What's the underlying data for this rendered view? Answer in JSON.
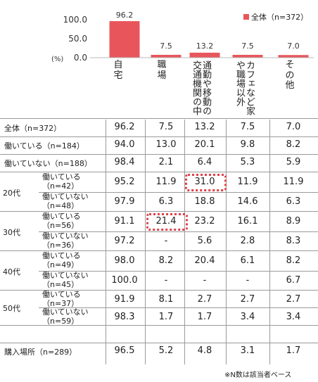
{
  "chart_data": {
    "type": "bar",
    "categories": [
      "自宅",
      "職場",
      "通勤や移動の交通機関の中",
      "カフェなど家や職場以外",
      "その他"
    ],
    "series": [
      {
        "name": "全体（n=372）",
        "values": [
          96.2,
          7.5,
          13.2,
          7.5,
          7.0
        ]
      }
    ],
    "value_labels": [
      "96.2",
      "7.5",
      "13.2",
      "7.5",
      "7.0"
    ],
    "y_ticks": [
      "100.0",
      "50.0",
      "0.0"
    ],
    "ylim": [
      0,
      100
    ],
    "y_unit": "(%)",
    "bar_color": "#e8565c",
    "legend_position": "top-right"
  },
  "table": {
    "rows": [
      {
        "label": "全体（n=372）",
        "values": [
          "96.2",
          "7.5",
          "13.2",
          "7.5",
          "7.0"
        ]
      },
      {
        "label": "働いている（n=184）",
        "values": [
          "94.0",
          "13.0",
          "20.1",
          "9.8",
          "8.2"
        ]
      },
      {
        "label": "働いていない（n=188）",
        "values": [
          "98.4",
          "2.1",
          "6.4",
          "5.3",
          "5.9"
        ]
      },
      {
        "group": "20代",
        "label": "働いている\n（n=42）",
        "values": [
          "95.2",
          "11.9",
          "31.0",
          "11.9",
          "11.9"
        ]
      },
      {
        "label": "働いていない\n（n=48）",
        "values": [
          "97.9",
          "6.3",
          "18.8",
          "14.6",
          "6.3"
        ]
      },
      {
        "group": "30代",
        "label": "働いている\n（n=56）",
        "values": [
          "91.1",
          "21.4",
          "23.2",
          "16.1",
          "8.9"
        ]
      },
      {
        "label": "働いていない\n（n=36）",
        "values": [
          "97.2",
          "-",
          "5.6",
          "2.8",
          "8.3"
        ]
      },
      {
        "group": "40代",
        "label": "働いている\n（n=49）",
        "values": [
          "98.0",
          "8.2",
          "20.4",
          "6.1",
          "8.2"
        ]
      },
      {
        "label": "働いていない\n（n=45）",
        "values": [
          "100.0",
          "-",
          "-",
          "-",
          "6.7"
        ]
      },
      {
        "group": "50代",
        "label": "働いている\n（n=37）",
        "values": [
          "91.9",
          "8.1",
          "2.7",
          "2.7",
          "2.7"
        ]
      },
      {
        "label": "働いていない\n（n=59）",
        "values": [
          "98.3",
          "1.7",
          "1.7",
          "3.4",
          "3.4"
        ]
      },
      {
        "label": "購入場所（n=289）",
        "values": [
          "96.5",
          "5.2",
          "4.8",
          "3.1",
          "1.7"
        ]
      }
    ],
    "highlight_color": "#e04048"
  },
  "footnote": "※N数は該当者ベース"
}
